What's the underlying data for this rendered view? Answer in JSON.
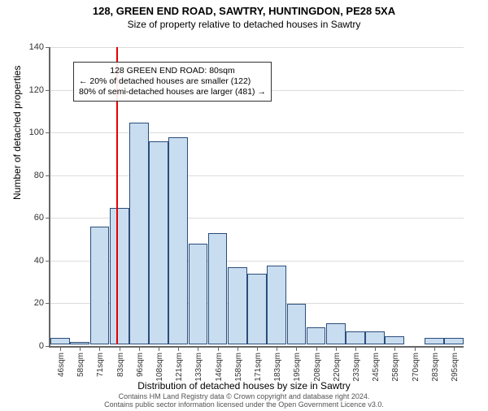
{
  "chart": {
    "type": "histogram",
    "title_line1": "128, GREEN END ROAD, SAWTRY, HUNTINGDON, PE28 5XA",
    "title_line2": "Size of property relative to detached houses in Sawtry",
    "ylabel": "Number of detached properties",
    "xlabel": "Distribution of detached houses by size in Sawtry",
    "ylim": [
      0,
      140
    ],
    "ytick_step": 20,
    "yticks": [
      0,
      20,
      40,
      60,
      80,
      100,
      120,
      140
    ],
    "bar_fill": "#c9ddf0",
    "bar_stroke": "#2a4d7a",
    "grid_color": "#dcdcdc",
    "axis_color": "#666666",
    "background": "#ffffff",
    "reference_line_x": 80,
    "reference_line_color": "#e60000",
    "x_categories": [
      "46sqm",
      "58sqm",
      "71sqm",
      "83sqm",
      "96sqm",
      "108sqm",
      "121sqm",
      "133sqm",
      "146sqm",
      "158sqm",
      "171sqm",
      "183sqm",
      "195sqm",
      "208sqm",
      "220sqm",
      "233sqm",
      "245sqm",
      "258sqm",
      "270sqm",
      "283sqm",
      "295sqm"
    ],
    "values": [
      3,
      1,
      55,
      64,
      104,
      95,
      97,
      47,
      52,
      36,
      33,
      37,
      19,
      8,
      10,
      6,
      6,
      4,
      0,
      3,
      3
    ],
    "callout": {
      "line1": "128 GREEN END ROAD: 80sqm",
      "line2": "← 20% of detached houses are smaller (122)",
      "line3": "80% of semi-detached houses are larger (481) →"
    },
    "footer_line1": "Contains HM Land Registry data © Crown copyright and database right 2024.",
    "footer_line2": "Contains public sector information licensed under the Open Government Licence v3.0."
  }
}
